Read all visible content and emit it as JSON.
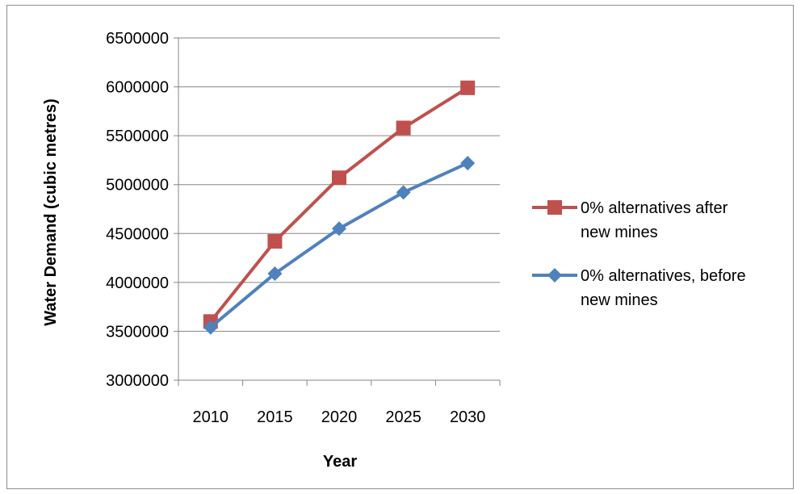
{
  "chart_data": {
    "type": "line",
    "title": "",
    "xlabel": "Year",
    "ylabel": "Water Demand (cubic metres)",
    "categories": [
      "2010",
      "2015",
      "2020",
      "2025",
      "2030"
    ],
    "ylim": [
      3000000,
      6500000
    ],
    "yticks": [
      "3000000",
      "3500000",
      "4000000",
      "4500000",
      "5000000",
      "5500000",
      "6000000",
      "6500000"
    ],
    "grid": "horizontal",
    "legend_position": "right",
    "series": [
      {
        "name": "0% alternatives after new mines",
        "name_lines": [
          "0% alternatives after",
          "new mines"
        ],
        "values": [
          3600000,
          4420000,
          5070000,
          5580000,
          5990000
        ],
        "color": "#c0504d",
        "marker": "square"
      },
      {
        "name": "0% alternatives, before new mines",
        "name_lines": [
          "0% alternatives, before",
          "new mines"
        ],
        "values": [
          3540000,
          4090000,
          4550000,
          4920000,
          5220000
        ],
        "color": "#4f81bd",
        "marker": "diamond"
      }
    ]
  }
}
